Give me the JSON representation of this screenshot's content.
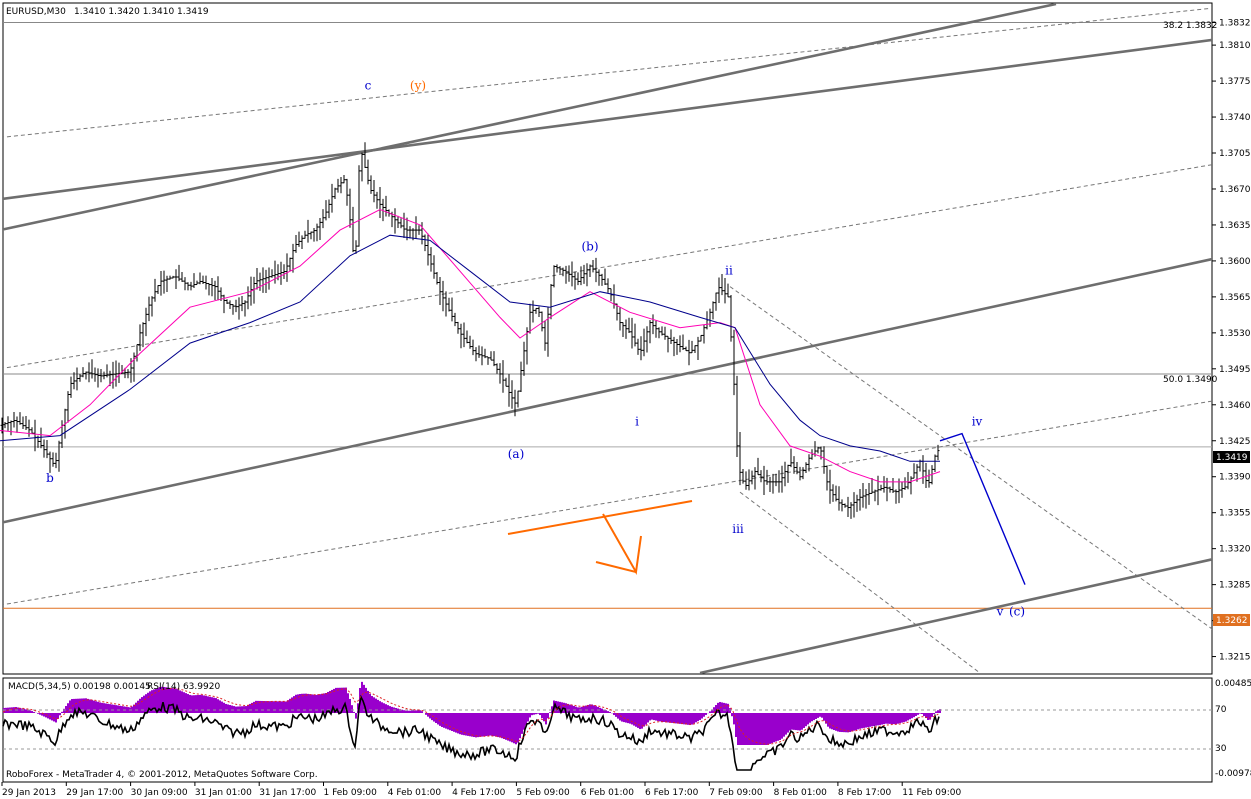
{
  "header": {
    "symbol_tf": "EURUSD,M30",
    "ohlc": "1.3410 1.3420 1.3410 1.3419"
  },
  "footer": {
    "copyright": "RoboForex - MetaTrader 4, © 2001-2012, MetaQuotes Software Corp."
  },
  "indicator": {
    "macd_label": "MACD(5,34,5) 0.00198 0.00145",
    "rsi_label": "RSI(14) 63.9920",
    "right_labels": [
      "0.00485",
      "70",
      "30",
      "-0.00978"
    ]
  },
  "fib": {
    "f382": "38.2 1.3832",
    "f500": "50.0 1.3490"
  },
  "price_tags": {
    "current": "1.3419",
    "support": "1.3262"
  },
  "colors": {
    "bars": "#000000",
    "ma_fast": "#ff00b4",
    "ma_slow": "#00008b",
    "channel": "#6e6e6e",
    "wave_blue": "#0000cc",
    "wave_orange": "#ff6a00",
    "macd_hist": "#9900cc",
    "support_line": "#e07020"
  },
  "chart_data": {
    "type": "line",
    "price_axis": [
      "1.3832",
      "1.3810",
      "1.3775",
      "1.3740",
      "1.3705",
      "1.3670",
      "1.3635",
      "1.3600",
      "1.3565",
      "1.3530",
      "1.3495",
      "1.3460",
      "1.3425",
      "1.3390",
      "1.3355",
      "1.3320",
      "1.3285",
      "1.3250",
      "1.3215"
    ],
    "ylim": [
      1.3199,
      1.385
    ],
    "time_axis": [
      "29 Jan 2013",
      "29 Jan 17:00",
      "30 Jan 09:00",
      "31 Jan 01:00",
      "31 Jan 17:00",
      "1 Feb 09:00",
      "4 Feb 01:00",
      "4 Feb 17:00",
      "5 Feb 09:00",
      "6 Feb 01:00",
      "6 Feb 17:00",
      "7 Feb 09:00",
      "8 Feb 01:00",
      "8 Feb 17:00",
      "11 Feb 09:00"
    ],
    "price_path": [
      [
        0,
        1.344
      ],
      [
        15,
        1.3445
      ],
      [
        30,
        1.3435
      ],
      [
        45,
        1.3415
      ],
      [
        55,
        1.34
      ],
      [
        62,
        1.344
      ],
      [
        70,
        1.348
      ],
      [
        85,
        1.3492
      ],
      [
        100,
        1.3488
      ],
      [
        115,
        1.349
      ],
      [
        130,
        1.3492
      ],
      [
        140,
        1.353
      ],
      [
        150,
        1.356
      ],
      [
        160,
        1.358
      ],
      [
        175,
        1.3585
      ],
      [
        190,
        1.3575
      ],
      [
        200,
        1.358
      ],
      [
        215,
        1.3575
      ],
      [
        225,
        1.356
      ],
      [
        235,
        1.3555
      ],
      [
        245,
        1.356
      ],
      [
        255,
        1.358
      ],
      [
        270,
        1.3585
      ],
      [
        285,
        1.359
      ],
      [
        295,
        1.3615
      ],
      [
        305,
        1.3625
      ],
      [
        315,
        1.363
      ],
      [
        325,
        1.3645
      ],
      [
        335,
        1.367
      ],
      [
        345,
        1.368
      ],
      [
        350,
        1.364
      ],
      [
        355,
        1.359
      ],
      [
        360,
        1.3712
      ],
      [
        370,
        1.367
      ],
      [
        380,
        1.3655
      ],
      [
        395,
        1.364
      ],
      [
        405,
        1.363
      ],
      [
        420,
        1.363
      ],
      [
        430,
        1.36
      ],
      [
        440,
        1.357
      ],
      [
        450,
        1.355
      ],
      [
        460,
        1.353
      ],
      [
        475,
        1.351
      ],
      [
        490,
        1.3505
      ],
      [
        500,
        1.349
      ],
      [
        510,
        1.347
      ],
      [
        516,
        1.346
      ],
      [
        522,
        1.35
      ],
      [
        530,
        1.355
      ],
      [
        538,
        1.3555
      ],
      [
        545,
        1.352
      ],
      [
        553,
        1.3595
      ],
      [
        565,
        1.359
      ],
      [
        578,
        1.358
      ],
      [
        590,
        1.3595
      ],
      [
        600,
        1.3585
      ],
      [
        610,
        1.357
      ],
      [
        620,
        1.354
      ],
      [
        630,
        1.353
      ],
      [
        640,
        1.351
      ],
      [
        650,
        1.354
      ],
      [
        660,
        1.353
      ],
      [
        675,
        1.352
      ],
      [
        690,
        1.351
      ],
      [
        700,
        1.3525
      ],
      [
        710,
        1.355
      ],
      [
        718,
        1.3575
      ],
      [
        728,
        1.3565
      ],
      [
        733,
        1.35
      ],
      [
        738,
        1.34
      ],
      [
        745,
        1.338
      ],
      [
        755,
        1.3395
      ],
      [
        765,
        1.3385
      ],
      [
        780,
        1.3385
      ],
      [
        790,
        1.3405
      ],
      [
        800,
        1.339
      ],
      [
        810,
        1.341
      ],
      [
        820,
        1.342
      ],
      [
        828,
        1.338
      ],
      [
        838,
        1.3365
      ],
      [
        848,
        1.336
      ],
      [
        860,
        1.337
      ],
      [
        872,
        1.3375
      ],
      [
        885,
        1.338
      ],
      [
        895,
        1.3375
      ],
      [
        905,
        1.338
      ],
      [
        912,
        1.339
      ],
      [
        920,
        1.3405
      ],
      [
        928,
        1.338
      ],
      [
        935,
        1.341
      ],
      [
        940,
        1.3419
      ]
    ],
    "ma_fast_path": [
      [
        0,
        1.3435
      ],
      [
        50,
        1.343
      ],
      [
        90,
        1.346
      ],
      [
        140,
        1.351
      ],
      [
        190,
        1.3555
      ],
      [
        250,
        1.357
      ],
      [
        300,
        1.3595
      ],
      [
        340,
        1.363
      ],
      [
        380,
        1.365
      ],
      [
        420,
        1.3635
      ],
      [
        460,
        1.359
      ],
      [
        500,
        1.3545
      ],
      [
        520,
        1.3525
      ],
      [
        550,
        1.3545
      ],
      [
        590,
        1.357
      ],
      [
        630,
        1.355
      ],
      [
        680,
        1.3535
      ],
      [
        720,
        1.354
      ],
      [
        735,
        1.3535
      ],
      [
        760,
        1.346
      ],
      [
        790,
        1.342
      ],
      [
        820,
        1.341
      ],
      [
        850,
        1.3395
      ],
      [
        880,
        1.3385
      ],
      [
        910,
        1.3385
      ],
      [
        940,
        1.3395
      ]
    ],
    "ma_slow_path": [
      [
        0,
        1.3425
      ],
      [
        60,
        1.343
      ],
      [
        130,
        1.3475
      ],
      [
        190,
        1.352
      ],
      [
        250,
        1.354
      ],
      [
        300,
        1.356
      ],
      [
        350,
        1.3605
      ],
      [
        390,
        1.3625
      ],
      [
        430,
        1.362
      ],
      [
        470,
        1.359
      ],
      [
        510,
        1.356
      ],
      [
        550,
        1.3555
      ],
      [
        600,
        1.357
      ],
      [
        650,
        1.356
      ],
      [
        700,
        1.3545
      ],
      [
        735,
        1.3535
      ],
      [
        770,
        1.348
      ],
      [
        800,
        1.3445
      ],
      [
        820,
        1.343
      ],
      [
        850,
        1.342
      ],
      [
        880,
        1.3415
      ],
      [
        910,
        1.3405
      ],
      [
        940,
        1.3405
      ]
    ],
    "channel_lines": [
      {
        "x1": 0,
        "p1": 1.363,
        "x2": 1056,
        "p2": 1.385
      },
      {
        "x1": 0,
        "p1": 1.366,
        "x2": 1251,
        "p2": 1.382
      },
      {
        "x1": 0,
        "p1": 1.3345,
        "x2": 1251,
        "p2": 1.361
      },
      {
        "x1": 700,
        "p1": 1.3199,
        "x2": 1251,
        "p2": 1.3318
      }
    ],
    "dashed_lines": [
      {
        "x1": 0,
        "p1": 1.372,
        "x2": 1251,
        "p2": 1.385
      },
      {
        "x1": 0,
        "p1": 1.3495,
        "x2": 1251,
        "p2": 1.37
      },
      {
        "x1": 0,
        "p1": 1.3265,
        "x2": 1251,
        "p2": 1.347
      },
      {
        "x1": 730,
        "p1": 1.3575,
        "x2": 1251,
        "p2": 1.3215
      },
      {
        "x1": 740,
        "p1": 1.3375,
        "x2": 980,
        "p2": 1.3199
      }
    ],
    "horizontal_levels": [
      {
        "p": 1.3832,
        "kind": "fib"
      },
      {
        "p": 1.349,
        "kind": "fib"
      },
      {
        "p": 1.3419,
        "kind": "current"
      },
      {
        "p": 1.3262,
        "kind": "support"
      }
    ],
    "projection_path": [
      [
        940,
        1.3425
      ],
      [
        962,
        1.3432
      ],
      [
        1025,
        1.3285
      ]
    ],
    "wave_labels": [
      {
        "text": "b",
        "x": 50,
        "p": 1.3385,
        "color": "blue"
      },
      {
        "text": "c",
        "x": 368,
        "p": 1.3767,
        "color": "blue"
      },
      {
        "text": "(y)",
        "x": 418,
        "p": 1.3767,
        "color": "orange"
      },
      {
        "text": "(b)",
        "x": 590,
        "p": 1.361,
        "color": "blue"
      },
      {
        "text": "ii",
        "x": 729,
        "p": 1.3587,
        "color": "blue"
      },
      {
        "text": "(a)",
        "x": 516,
        "p": 1.3408,
        "color": "blue"
      },
      {
        "text": "i",
        "x": 637,
        "p": 1.344,
        "color": "blue"
      },
      {
        "text": "iii",
        "x": 738,
        "p": 1.3335,
        "color": "blue"
      },
      {
        "text": "iv",
        "x": 977,
        "p": 1.344,
        "color": "blue"
      },
      {
        "text": "v",
        "x": 1000,
        "p": 1.3255,
        "color": "blue"
      },
      {
        "text": "(c)",
        "x": 1017,
        "p": 1.3255,
        "color": "blue"
      }
    ]
  }
}
